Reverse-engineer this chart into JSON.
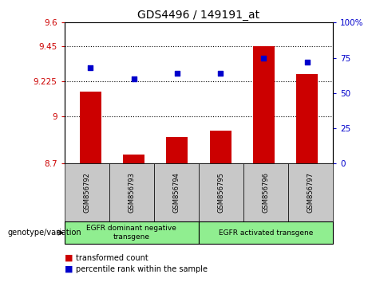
{
  "title": "GDS4496 / 149191_at",
  "samples": [
    "GSM856792",
    "GSM856793",
    "GSM856794",
    "GSM856795",
    "GSM856796",
    "GSM856797"
  ],
  "bar_values": [
    9.16,
    8.76,
    8.87,
    8.91,
    9.45,
    9.27
  ],
  "scatter_values": [
    68,
    60,
    64,
    64,
    75,
    72
  ],
  "bar_color": "#cc0000",
  "scatter_color": "#0000cc",
  "ylim_left": [
    8.7,
    9.6
  ],
  "ylim_right": [
    0,
    100
  ],
  "yticks_left": [
    8.7,
    9.0,
    9.225,
    9.45,
    9.6
  ],
  "ytick_labels_left": [
    "8.7",
    "9",
    "9.225",
    "9.45",
    "9.6"
  ],
  "yticks_right": [
    0,
    25,
    50,
    75,
    100
  ],
  "ytick_labels_right": [
    "0",
    "25",
    "50",
    "75",
    "100%"
  ],
  "hlines": [
    9.45,
    9.225,
    9.0
  ],
  "group1_label": "EGFR dominant negative\ntransgene",
  "group2_label": "EGFR activated transgene",
  "group1_indices": [
    0,
    1,
    2
  ],
  "group2_indices": [
    3,
    4,
    5
  ],
  "group_bg_color": "#90ee90",
  "sample_bg_color": "#c8c8c8",
  "legend_bar_label": "transformed count",
  "legend_scatter_label": "percentile rank within the sample",
  "xlabel_text": "genotype/variation",
  "bar_width": 0.5
}
